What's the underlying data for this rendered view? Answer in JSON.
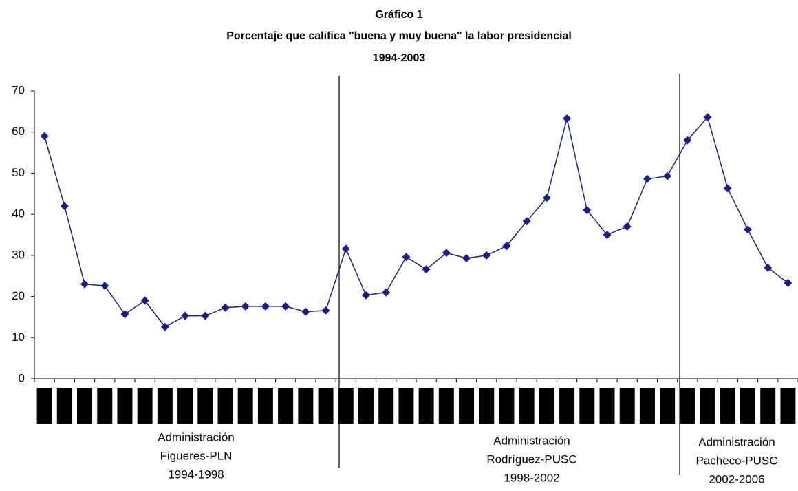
{
  "chart_data": {
    "type": "line",
    "title": "Gráfico 1",
    "subtitle": "Porcentaje que califica \"buena y muy buena\" la labor presidencial",
    "period": "1994-2003",
    "categories": [
      null,
      null,
      null,
      null,
      null,
      null,
      null,
      null,
      null,
      null,
      null,
      null,
      null,
      null,
      null,
      null,
      null,
      null,
      null,
      null,
      null,
      null,
      null,
      null,
      null,
      null,
      null,
      null,
      null,
      null,
      null,
      null,
      null,
      null,
      null,
      null,
      null,
      null
    ],
    "series": [
      {
        "color": "#1c1c8a",
        "values": [
          59,
          42,
          23,
          22.6,
          15.7,
          19,
          12.6,
          15.3,
          15.3,
          17.3,
          17.6,
          17.6,
          17.6,
          16.3,
          16.6,
          31.6,
          20.3,
          21,
          29.6,
          26.6,
          30.6,
          29.3,
          30,
          32.3,
          38.3,
          44,
          63.3,
          41,
          35,
          37,
          48.6,
          49.3,
          58,
          63.6,
          46.3,
          36.3,
          27,
          23.3
        ]
      }
    ],
    "ylim": [
      0,
      70
    ],
    "yticks": [
      0,
      10,
      20,
      30,
      40,
      50,
      60,
      70
    ],
    "grid": false,
    "annotations": [
      {
        "lines": [
          "Administración",
          "Figueres-PLN",
          "1994-1998"
        ]
      },
      {
        "lines": [
          "Administración",
          "Rodríguez-PUSC",
          "1998-2002"
        ]
      },
      {
        "lines": [
          "Administración",
          "Pacheco-PUSC",
          "2002-2006"
        ]
      }
    ]
  }
}
